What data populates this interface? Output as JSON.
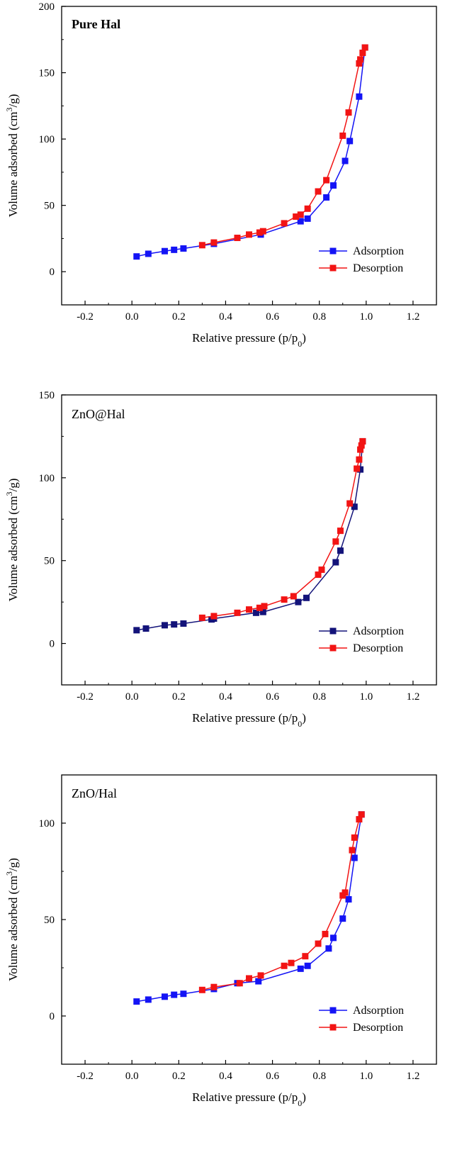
{
  "chart_data": [
    {
      "type": "line",
      "panel_label": "Pure Hal",
      "panel_label_bold": true,
      "xlabel_main": "Relative pressure (p/p",
      "xlabel_sub": "0",
      "xlabel_end": ")",
      "ylabel_main": "Volume adsorbed (cm",
      "ylabel_sup": "3",
      "ylabel_end": "/g)",
      "xlim": [
        -0.3,
        1.3
      ],
      "ylim": [
        -25,
        200
      ],
      "xticks": [
        "-0.2",
        "0.0",
        "0.2",
        "0.4",
        "0.6",
        "0.8",
        "1.0",
        "1.2"
      ],
      "yticks": [
        "0",
        "50",
        "100",
        "150",
        "200"
      ],
      "legend_position": "bottom-right",
      "series": [
        {
          "name": "Adsorption",
          "color": "#1414f5",
          "x": [
            0.02,
            0.07,
            0.14,
            0.18,
            0.22,
            0.35,
            0.55,
            0.72,
            0.75,
            0.83,
            0.86,
            0.91,
            0.93,
            0.97,
            0.995
          ],
          "y": [
            11.5,
            13.5,
            15.5,
            16.5,
            17.5,
            21,
            28,
            38,
            40,
            56,
            65,
            83.5,
            98.5,
            132,
            169
          ]
        },
        {
          "name": "Desorption",
          "color": "#f21414",
          "x": [
            0.995,
            0.985,
            0.975,
            0.97,
            0.925,
            0.9,
            0.83,
            0.795,
            0.75,
            0.72,
            0.7,
            0.65,
            0.56,
            0.545,
            0.5,
            0.45,
            0.35,
            0.3
          ],
          "y": [
            169,
            165,
            160,
            157,
            120,
            102.5,
            69,
            60.5,
            47.5,
            43,
            41.5,
            36.5,
            30.5,
            29.5,
            28,
            25.5,
            22,
            20
          ]
        }
      ]
    },
    {
      "type": "line",
      "panel_label": "ZnO@Hal",
      "panel_label_bold": false,
      "xlabel_main": "Relative pressure (p/p",
      "xlabel_sub": "0",
      "xlabel_end": ")",
      "ylabel_main": "Volume adsorbed (cm",
      "ylabel_sup": "3",
      "ylabel_end": "/g)",
      "xlim": [
        -0.3,
        1.3
      ],
      "ylim": [
        -25,
        150
      ],
      "xticks": [
        "-0.2",
        "0.0",
        "0.2",
        "0.4",
        "0.6",
        "0.8",
        "1.0",
        "1.2"
      ],
      "yticks": [
        "0",
        "50",
        "100",
        "150"
      ],
      "legend_position": "bottom-right",
      "series": [
        {
          "name": "Adsorption",
          "color": "#13137a",
          "x": [
            0.02,
            0.06,
            0.14,
            0.18,
            0.22,
            0.34,
            0.35,
            0.53,
            0.56,
            0.71,
            0.745,
            0.87,
            0.89,
            0.95,
            0.975,
            0.985
          ],
          "y": [
            8,
            9,
            11,
            11.5,
            12,
            14.5,
            15,
            18.5,
            19,
            25,
            27.5,
            49,
            56,
            82.5,
            105,
            122
          ]
        },
        {
          "name": "Desorption",
          "color": "#f21414",
          "x": [
            0.985,
            0.98,
            0.975,
            0.97,
            0.96,
            0.93,
            0.89,
            0.87,
            0.81,
            0.795,
            0.69,
            0.65,
            0.565,
            0.545,
            0.5,
            0.45,
            0.35,
            0.3
          ],
          "y": [
            122,
            119.5,
            117,
            111,
            105.5,
            84.5,
            68,
            61.5,
            44.5,
            41.5,
            28.5,
            26.5,
            22.5,
            21.5,
            20.5,
            18.5,
            16.5,
            15.5
          ]
        }
      ]
    },
    {
      "type": "line",
      "panel_label": "ZnO/Hal",
      "panel_label_bold": false,
      "xlabel_main": "Relative pressure (p/p",
      "xlabel_sub": "0",
      "xlabel_end": ")",
      "ylabel_main": "Volume adsorbed (cm",
      "ylabel_sup": "3",
      "ylabel_end": "/g)",
      "xlim": [
        -0.3,
        1.3
      ],
      "ylim": [
        -25,
        125
      ],
      "xticks": [
        "-0.2",
        "0.0",
        "0.2",
        "0.4",
        "0.6",
        "0.8",
        "1.0",
        "1.2"
      ],
      "yticks": [
        "0",
        "50",
        "100"
      ],
      "legend_position": "bottom-right",
      "series": [
        {
          "name": "Adsorption",
          "color": "#1414f5",
          "x": [
            0.02,
            0.07,
            0.14,
            0.18,
            0.22,
            0.35,
            0.45,
            0.54,
            0.72,
            0.75,
            0.84,
            0.86,
            0.9,
            0.925,
            0.95,
            0.98
          ],
          "y": [
            7.5,
            8.5,
            10,
            11,
            11.5,
            14,
            17,
            18,
            24.5,
            26,
            35,
            40.5,
            50.5,
            60.5,
            82,
            104.5
          ]
        },
        {
          "name": "Desorption",
          "color": "#f21414",
          "x": [
            0.98,
            0.97,
            0.95,
            0.94,
            0.91,
            0.9,
            0.825,
            0.795,
            0.74,
            0.68,
            0.65,
            0.55,
            0.5,
            0.46,
            0.35,
            0.3
          ],
          "y": [
            104.5,
            102,
            92.5,
            86,
            64,
            62.5,
            42.5,
            37.5,
            31,
            27.5,
            26,
            21,
            19.5,
            17,
            15,
            13.5
          ]
        }
      ]
    }
  ]
}
